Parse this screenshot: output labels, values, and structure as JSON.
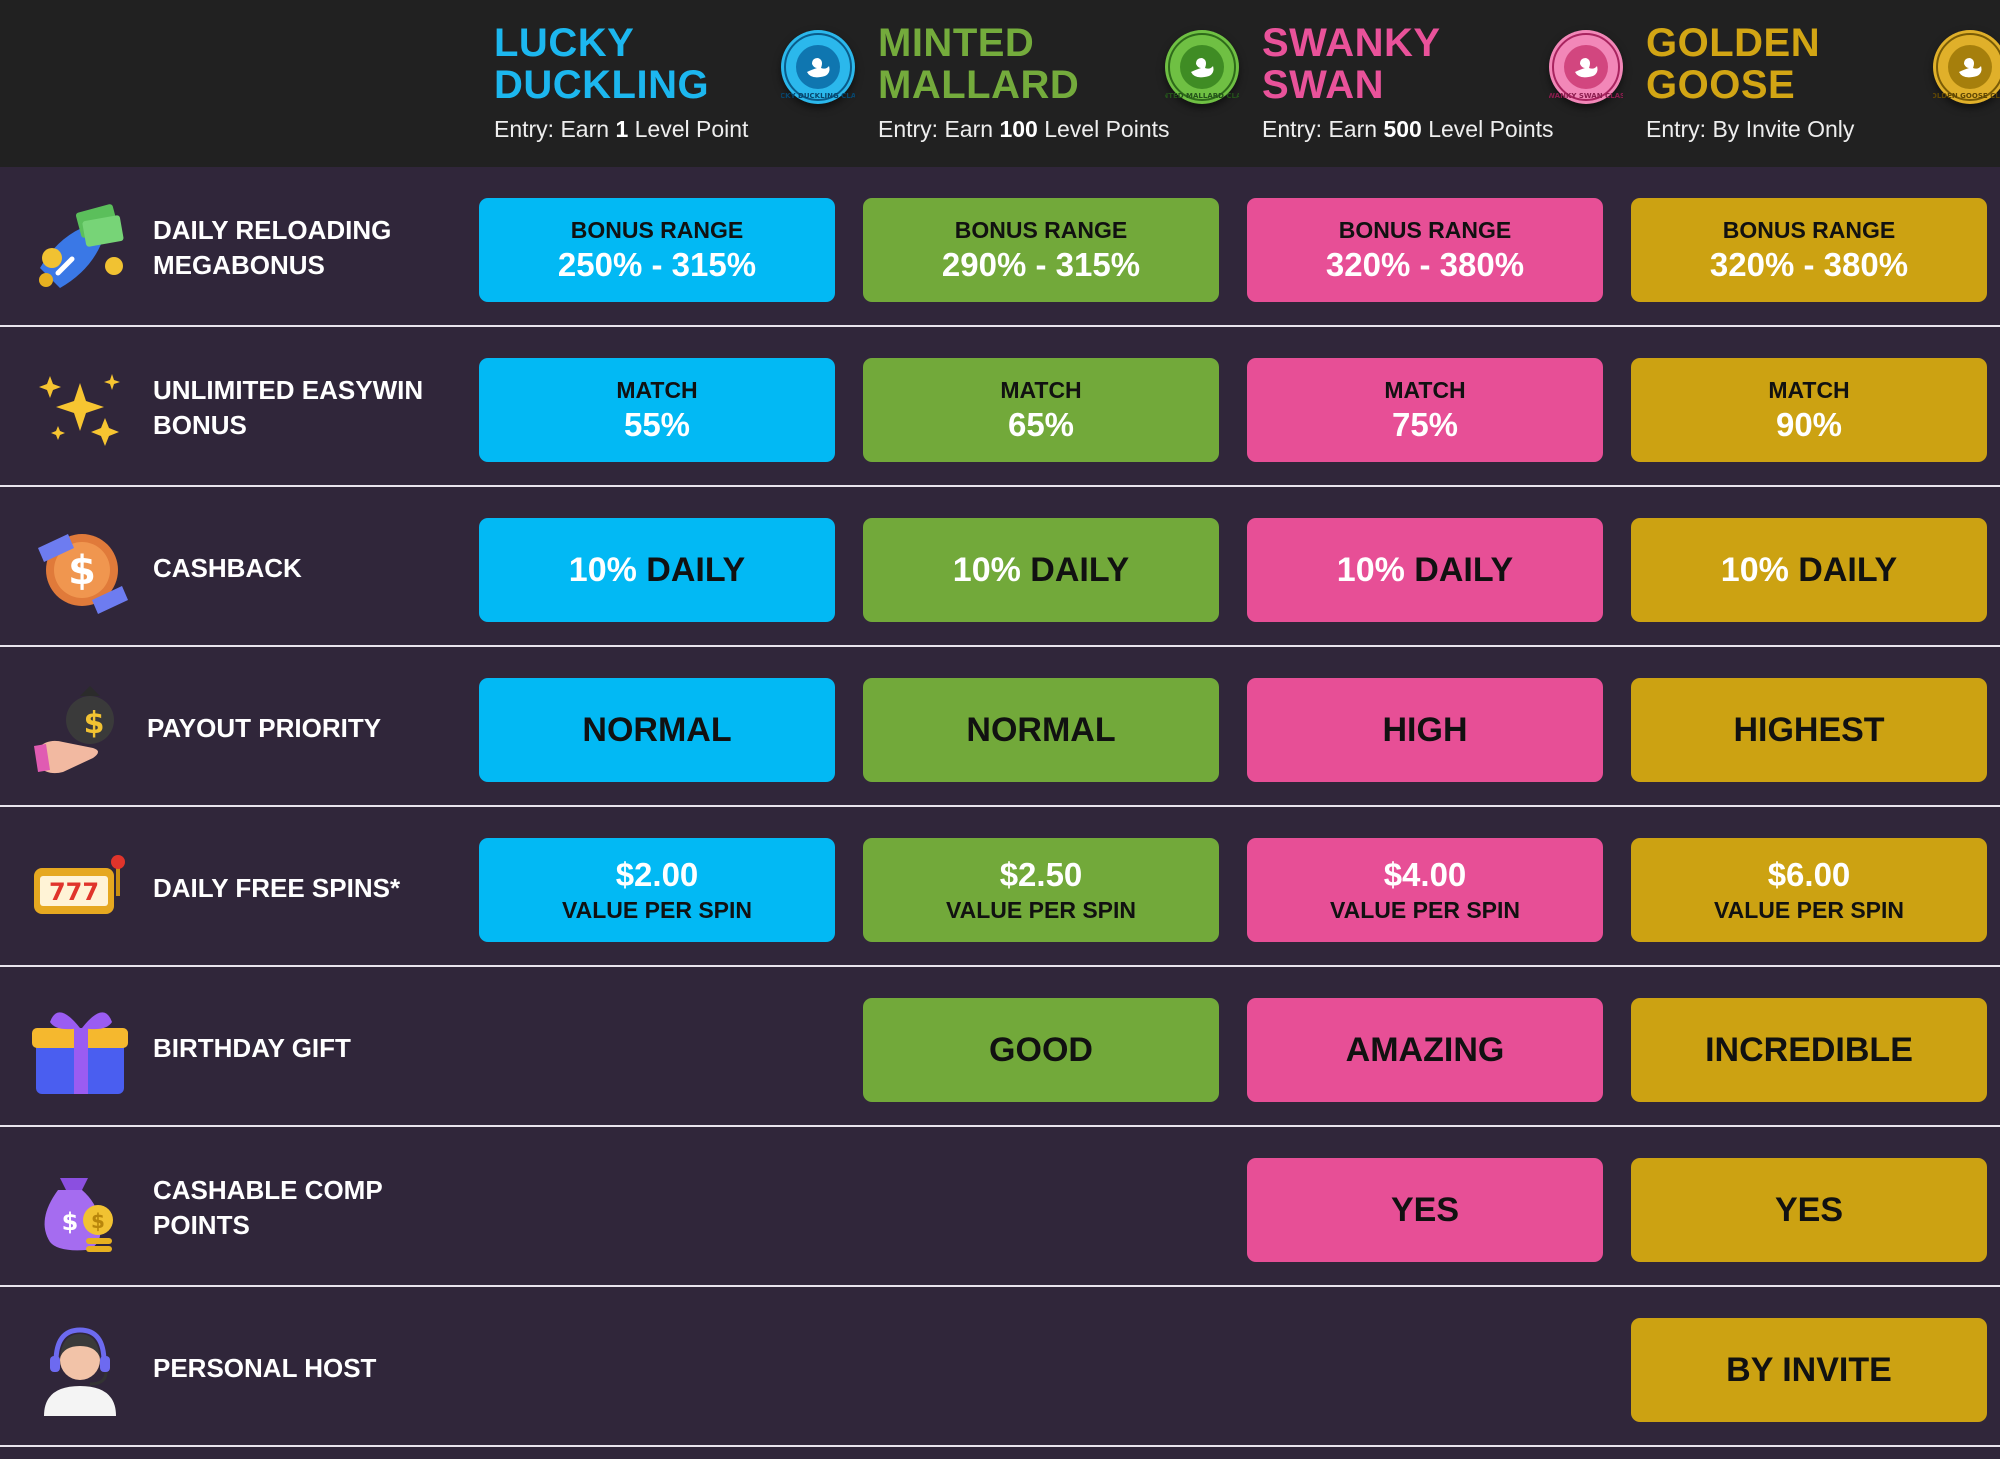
{
  "tiers": [
    {
      "key": "lucky",
      "name": "LUCKY\nDUCKLING",
      "entry_prefix": "Entry: Earn ",
      "entry_value": "1",
      "entry_suffix": " Level Point",
      "color": "#1cb7ef",
      "badge_text": "LUCKY DUCKLING CLASS"
    },
    {
      "key": "minted",
      "name": "MINTED\nMALLARD",
      "entry_prefix": "Entry: Earn ",
      "entry_value": "100",
      "entry_suffix": " Level Points",
      "color": "#74ab3c",
      "badge_text": "MINTED MALLARD CLASS"
    },
    {
      "key": "swanky",
      "name": "SWANKY\nSWAN",
      "entry_prefix": "Entry: Earn ",
      "entry_value": "500",
      "entry_suffix": " Level Points",
      "color": "#e9529a",
      "badge_text": "SWANKY SWAN CLASS"
    },
    {
      "key": "golden",
      "name": "GOLDEN\nGOOSE",
      "entry_prefix": "Entry: ",
      "entry_value": "",
      "entry_suffix": "By Invite Only",
      "color": "#d2a514",
      "badge_text": "GOLDEN GOOSE CLASS"
    }
  ],
  "rows": [
    {
      "label": "DAILY RELOADING\nMEGABONUS",
      "icon": "money-rocket-icon",
      "cells": [
        {
          "top": "BONUS RANGE",
          "bottom": "250% - 315%"
        },
        {
          "top": "BONUS RANGE",
          "bottom": "290% - 315%"
        },
        {
          "top": "BONUS RANGE",
          "bottom": "320% - 380%"
        },
        {
          "top": "BONUS RANGE",
          "bottom": "320% - 380%"
        }
      ]
    },
    {
      "label": "UNLIMITED EASYWIN\nBONUS",
      "icon": "sparkles-icon",
      "cells": [
        {
          "top": "MATCH",
          "bottom": "55%"
        },
        {
          "top": "MATCH",
          "bottom": "65%"
        },
        {
          "top": "MATCH",
          "bottom": "75%"
        },
        {
          "top": "MATCH",
          "bottom": "90%"
        }
      ]
    },
    {
      "label": "CASHBACK",
      "icon": "dollar-coin-icon",
      "cells": [
        {
          "a": "10%",
          "b": " DAILY"
        },
        {
          "a": "10%",
          "b": " DAILY"
        },
        {
          "a": "10%",
          "b": " DAILY"
        },
        {
          "a": "10%",
          "b": " DAILY"
        }
      ]
    },
    {
      "label": "PAYOUT PRIORITY",
      "icon": "money-bag-hand-icon",
      "cells": [
        {
          "text": "NORMAL"
        },
        {
          "text": "NORMAL"
        },
        {
          "text": "HIGH"
        },
        {
          "text": "HIGHEST"
        }
      ]
    },
    {
      "label": "DAILY FREE SPINS*",
      "icon": "slot-machine-icon",
      "cells": [
        {
          "big": "$2.00",
          "small": "VALUE PER SPIN"
        },
        {
          "big": "$2.50",
          "small": "VALUE PER SPIN"
        },
        {
          "big": "$4.00",
          "small": "VALUE PER SPIN"
        },
        {
          "big": "$6.00",
          "small": "VALUE PER SPIN"
        }
      ]
    },
    {
      "label": "BIRTHDAY GIFT",
      "icon": "gift-box-icon",
      "cells": [
        null,
        {
          "text": "GOOD"
        },
        {
          "text": "AMAZING"
        },
        {
          "text": "INCREDIBLE"
        }
      ]
    },
    {
      "label": "CASHABLE COMP\nPOINTS",
      "icon": "coin-bag-icon",
      "cells": [
        null,
        null,
        {
          "text": "YES"
        },
        {
          "text": "YES"
        }
      ]
    },
    {
      "label": "PERSONAL HOST",
      "icon": "headset-host-icon",
      "cells": [
        null,
        null,
        null,
        {
          "text": "BY INVITE"
        }
      ]
    }
  ]
}
